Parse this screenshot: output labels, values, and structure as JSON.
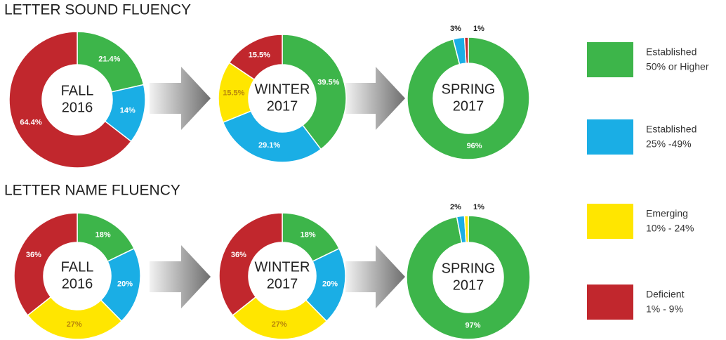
{
  "legend": [
    {
      "name": "Established",
      "range": "50% or Higher",
      "color": "#3db54a"
    },
    {
      "name": "Established",
      "range": "25% -49%",
      "color": "#1aaee5"
    },
    {
      "name": "Emerging",
      "range": "10% - 24%",
      "color": "#ffe600"
    },
    {
      "name": "Deficient",
      "range": "1% - 9%",
      "color": "#c1272d"
    }
  ],
  "chart_data": [
    {
      "type": "donut",
      "title": "LETTER SOUND FLUENCY",
      "center": [
        "FALL",
        "2016"
      ],
      "values": [
        21.4,
        14,
        null,
        64.4
      ],
      "value_labels": [
        "21.4%",
        "14%",
        null,
        "64.4%"
      ]
    },
    {
      "type": "donut",
      "center": [
        "WINTER",
        "2017"
      ],
      "values": [
        39.5,
        29.1,
        15.5,
        15.5
      ],
      "value_labels": [
        "39.5%",
        "29.1%",
        "15.5%",
        "15.5%"
      ]
    },
    {
      "type": "donut",
      "center": [
        "SPRING",
        "2017"
      ],
      "values": [
        96,
        3,
        null,
        1
      ],
      "value_labels": [
        "96%",
        "3%",
        null,
        "1%"
      ]
    },
    {
      "type": "donut",
      "title": "LETTER NAME FLUENCY",
      "center": [
        "FALL",
        "2016"
      ],
      "values": [
        18,
        20,
        27,
        36
      ],
      "value_labels": [
        "18%",
        "20%",
        "27%",
        "36%"
      ]
    },
    {
      "type": "donut",
      "center": [
        "WINTER",
        "2017"
      ],
      "values": [
        18,
        20,
        27,
        36
      ],
      "value_labels": [
        "18%",
        "20%",
        "27%",
        "36%"
      ]
    },
    {
      "type": "donut",
      "center": [
        "SPRING",
        "2017"
      ],
      "values": [
        97,
        2,
        1,
        null
      ],
      "value_labels": [
        "97%",
        "2%",
        "1%",
        null
      ]
    }
  ]
}
